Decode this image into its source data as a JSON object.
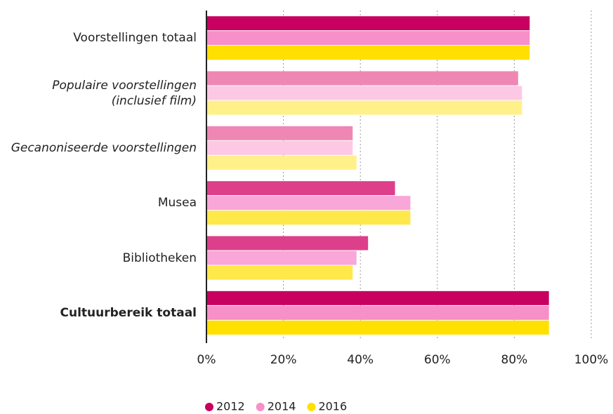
{
  "chart_data": {
    "type": "hbar",
    "categories": [
      "Voorstellingen totaal",
      "Populaire voorstellingen\n(inclusief film)",
      "Gecanoniseerde voorstellingen",
      "Musea",
      "Bibliotheken",
      "Cultuurbereik totaal"
    ],
    "category_styles": [
      "normal",
      "italic",
      "italic",
      "normal",
      "normal",
      "bold"
    ],
    "series": [
      {
        "name": "2012",
        "color": "#c8005f",
        "colors": [
          "#c8005f",
          "#ef87b4",
          "#ef87b4",
          "#dd3f8a",
          "#dd3f8a",
          "#c8005f"
        ],
        "values": [
          84,
          81,
          38,
          49,
          42,
          89
        ]
      },
      {
        "name": "2014",
        "color": "#f78fc8",
        "colors": [
          "#f78fc8",
          "#fdc8e4",
          "#fdc8e4",
          "#f9a6d8",
          "#f9a6d8",
          "#f78fc8"
        ],
        "values": [
          84,
          82,
          38,
          53,
          39,
          89
        ]
      },
      {
        "name": "2016",
        "color": "#ffe000",
        "colors": [
          "#ffe000",
          "#fff08a",
          "#fff08a",
          "#ffe84a",
          "#ffe84a",
          "#ffe000"
        ],
        "values": [
          84,
          82,
          39,
          53,
          38,
          89
        ]
      }
    ],
    "xlim": [
      0,
      100
    ],
    "xticks": [
      {
        "value": 0,
        "label": "0%"
      },
      {
        "value": 20,
        "label": "20%"
      },
      {
        "value": 40,
        "label": "40%"
      },
      {
        "value": 60,
        "label": "60%"
      },
      {
        "value": 80,
        "label": "80%"
      },
      {
        "value": 100,
        "label": "100%"
      }
    ],
    "grid": true
  }
}
